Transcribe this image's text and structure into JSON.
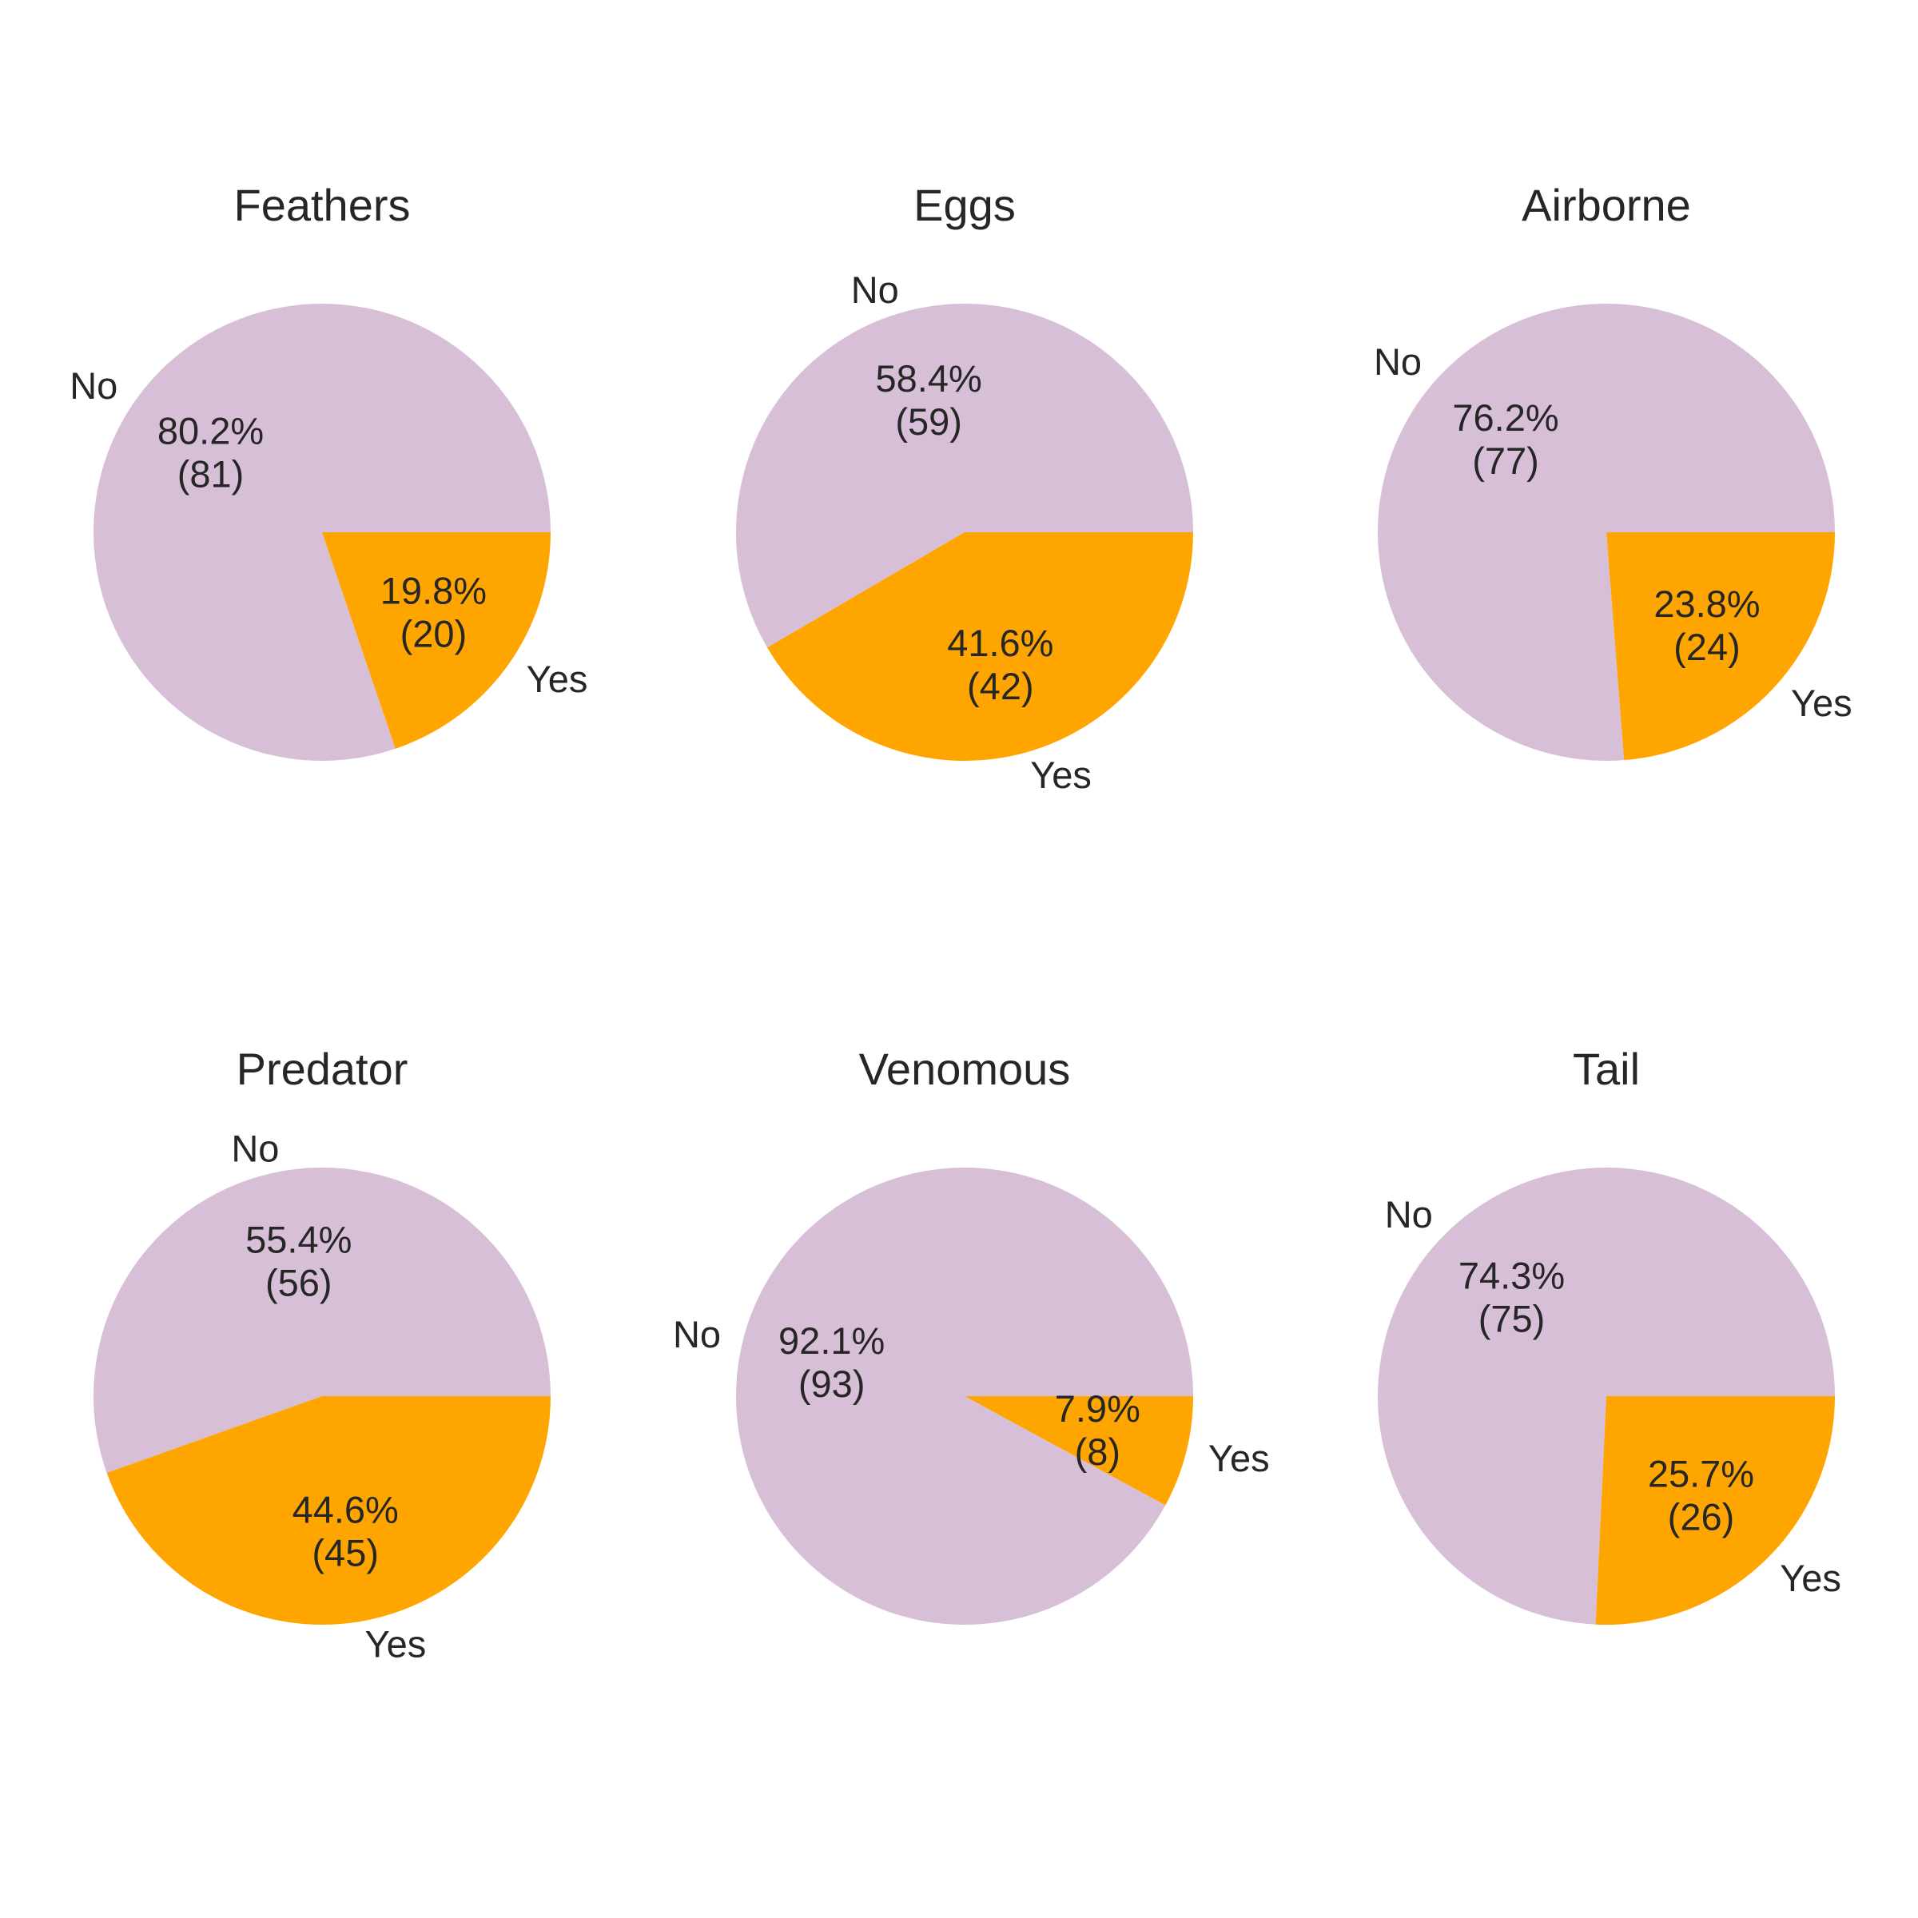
{
  "colors": {
    "background": "#ffffff",
    "text": "#262626",
    "no": "#d8bfd8",
    "yes": "#ffa500"
  },
  "chart_data": [
    {
      "type": "pie",
      "title": "Feathers",
      "labels": [
        "No",
        "Yes"
      ],
      "counts": [
        81,
        20
      ],
      "percents": [
        "80.2%",
        "19.8%"
      ],
      "count_labels": [
        "(81)",
        "(20)"
      ],
      "colors": [
        "#d8bfd8",
        "#ffa500"
      ],
      "start_angle": 0,
      "direction": "counterclockwise"
    },
    {
      "type": "pie",
      "title": "Eggs",
      "labels": [
        "No",
        "Yes"
      ],
      "counts": [
        59,
        42
      ],
      "percents": [
        "58.4%",
        "41.6%"
      ],
      "count_labels": [
        "(59)",
        "(42)"
      ],
      "colors": [
        "#d8bfd8",
        "#ffa500"
      ],
      "start_angle": 0,
      "direction": "counterclockwise"
    },
    {
      "type": "pie",
      "title": "Airborne",
      "labels": [
        "No",
        "Yes"
      ],
      "counts": [
        77,
        24
      ],
      "percents": [
        "76.2%",
        "23.8%"
      ],
      "count_labels": [
        "(77)",
        "(24)"
      ],
      "colors": [
        "#d8bfd8",
        "#ffa500"
      ],
      "start_angle": 0,
      "direction": "counterclockwise"
    },
    {
      "type": "pie",
      "title": "Predator",
      "labels": [
        "No",
        "Yes"
      ],
      "counts": [
        56,
        45
      ],
      "percents": [
        "55.4%",
        "44.6%"
      ],
      "count_labels": [
        "(56)",
        "(45)"
      ],
      "colors": [
        "#d8bfd8",
        "#ffa500"
      ],
      "start_angle": 0,
      "direction": "counterclockwise"
    },
    {
      "type": "pie",
      "title": "Venomous",
      "labels": [
        "No",
        "Yes"
      ],
      "counts": [
        93,
        8
      ],
      "percents": [
        "92.1%",
        "7.9%"
      ],
      "count_labels": [
        "(93)",
        "(8)"
      ],
      "colors": [
        "#d8bfd8",
        "#ffa500"
      ],
      "start_angle": 0,
      "direction": "counterclockwise"
    },
    {
      "type": "pie",
      "title": "Tail",
      "labels": [
        "No",
        "Yes"
      ],
      "counts": [
        75,
        26
      ],
      "percents": [
        "74.3%",
        "25.7%"
      ],
      "count_labels": [
        "(75)",
        "(26)"
      ],
      "colors": [
        "#d8bfd8",
        "#ffa500"
      ],
      "start_angle": 0,
      "direction": "counterclockwise"
    }
  ]
}
